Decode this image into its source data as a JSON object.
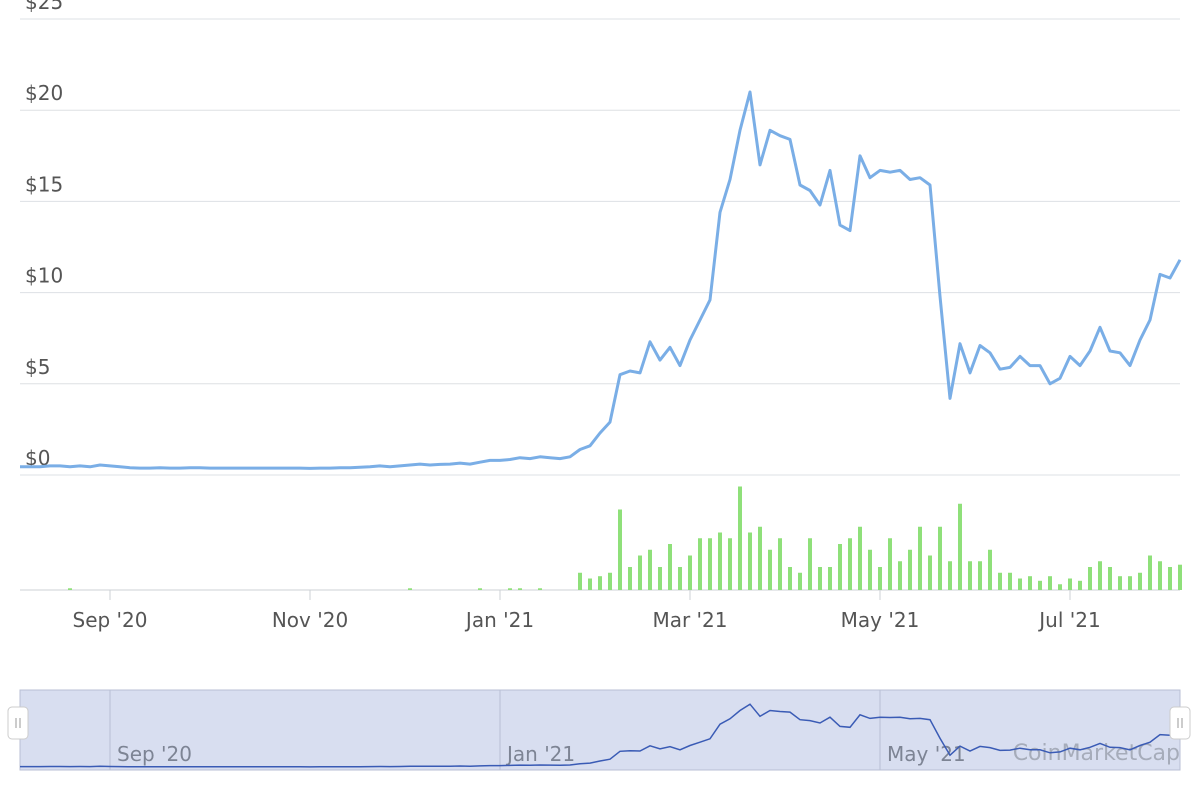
{
  "chart_data": {
    "type": "line",
    "categories": [
      null,
      null,
      null,
      null,
      null,
      null,
      null,
      null,
      null,
      "Sep '20",
      null,
      null,
      null,
      null,
      null,
      null,
      null,
      null,
      null,
      null,
      null,
      null,
      null,
      null,
      null,
      null,
      null,
      null,
      null,
      "Nov '20",
      null,
      null,
      null,
      null,
      null,
      null,
      null,
      null,
      null,
      null,
      null,
      null,
      null,
      null,
      null,
      null,
      null,
      null,
      "Jan '21",
      null,
      null,
      null,
      null,
      null,
      null,
      null,
      null,
      null,
      null,
      null,
      null,
      null,
      null,
      null,
      null,
      null,
      null,
      "Mar '21",
      null,
      null,
      null,
      null,
      null,
      null,
      null,
      null,
      null,
      null,
      null,
      null,
      null,
      null,
      null,
      null,
      null,
      null,
      "May '21",
      null,
      null,
      null,
      null,
      null,
      null,
      null,
      null,
      null,
      null,
      null,
      null,
      null,
      null,
      null,
      null,
      null,
      null,
      "Jul '21",
      null,
      null,
      null,
      null,
      null,
      null,
      null,
      null,
      null,
      null,
      null
    ],
    "series": [
      {
        "color": "#7aaee6",
        "values": [
          0.45,
          0.45,
          0.45,
          0.5,
          0.5,
          0.45,
          0.5,
          0.45,
          0.55,
          0.5,
          0.45,
          0.4,
          0.38,
          0.38,
          0.4,
          0.38,
          0.38,
          0.4,
          0.4,
          0.38,
          0.38,
          0.38,
          0.38,
          0.38,
          0.38,
          0.38,
          0.38,
          0.38,
          0.38,
          0.36,
          0.38,
          0.38,
          0.4,
          0.4,
          0.42,
          0.45,
          0.5,
          0.45,
          0.5,
          0.55,
          0.6,
          0.55,
          0.58,
          0.6,
          0.65,
          0.6,
          0.7,
          0.8,
          0.8,
          0.85,
          0.95,
          0.9,
          1.0,
          0.95,
          0.9,
          1.0,
          1.4,
          1.6,
          2.3,
          2.9,
          5.5,
          5.7,
          5.6,
          7.3,
          6.3,
          7.0,
          6.0,
          7.4,
          8.5,
          9.6,
          14.4,
          16.2,
          18.9,
          21.0,
          17.0,
          18.9,
          18.6,
          18.4,
          15.9,
          15.6,
          14.8,
          16.7,
          13.7,
          13.4,
          17.5,
          16.3,
          16.7,
          16.6,
          16.7,
          16.2,
          16.3,
          15.9,
          9.8,
          4.2,
          7.2,
          5.6,
          7.1,
          6.7,
          5.8,
          5.9,
          6.5,
          6.0,
          6.0,
          5.0,
          5.3,
          6.5,
          6.0,
          6.8,
          8.1,
          6.8,
          6.7,
          6.0,
          7.4,
          8.5,
          11.0,
          10.8,
          11.8
        ]
      },
      {
        "type": "bar",
        "color": "#8fe07a",
        "axis": "y2",
        "values": [
          0,
          0,
          0,
          0,
          0,
          1.5,
          0,
          0,
          0,
          0,
          0,
          0,
          0,
          0,
          0,
          0,
          0,
          0,
          0,
          0,
          0,
          0,
          0,
          0,
          0,
          0,
          0,
          0,
          0,
          0,
          0,
          0,
          0,
          0,
          0,
          0,
          0,
          0,
          0,
          1.5,
          0,
          0,
          0,
          0,
          0,
          0,
          1.5,
          0,
          0,
          1.5,
          1.5,
          0,
          1.5,
          0,
          0,
          0,
          15,
          10,
          12,
          15,
          70,
          20,
          30,
          35,
          20,
          40,
          20,
          30,
          45,
          45,
          50,
          45,
          90,
          50,
          55,
          35,
          45,
          20,
          15,
          45,
          20,
          20,
          40,
          45,
          55,
          35,
          20,
          45,
          25,
          35,
          55,
          30,
          55,
          25,
          75,
          25,
          25,
          35,
          15,
          15,
          10,
          12,
          8,
          12,
          5,
          10,
          8,
          20,
          25,
          20,
          12,
          12,
          15,
          30,
          25,
          20,
          22
        ]
      }
    ],
    "ylim": [
      0,
      25
    ],
    "yticks": [
      {
        "value": 0,
        "label": "$0"
      },
      {
        "value": 5,
        "label": "$5"
      },
      {
        "value": 10,
        "label": "$10"
      },
      {
        "value": 15,
        "label": "$15"
      },
      {
        "value": 20,
        "label": "$20"
      },
      {
        "value": 25,
        "label": "$25"
      }
    ],
    "y2lim": [
      0,
      100
    ],
    "grid": true,
    "watermark": "CoinMarketCap"
  }
}
